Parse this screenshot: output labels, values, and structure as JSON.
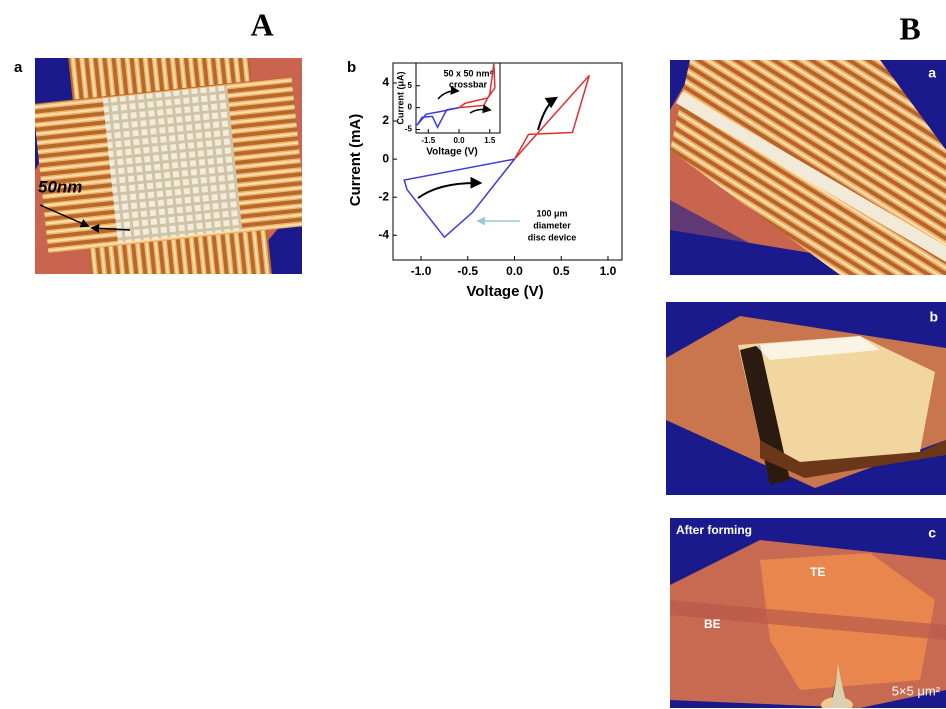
{
  "figure_labels": {
    "left": "A",
    "right": "B"
  },
  "panel_a": {
    "label": "a",
    "scale_label": "50nm"
  },
  "chart_data": [
    {
      "type": "line",
      "panel_label": "b",
      "x_label": "Voltage (V)",
      "y_label": "Current (mA)",
      "annotation": [
        "100 μm",
        "diameter",
        "disc device"
      ],
      "xlim": [
        -1.3,
        1.15
      ],
      "ylim": [
        -5.3,
        5.05
      ],
      "xticks": [
        {
          "value": -1.0,
          "label": "-1.0"
        },
        -0.5,
        {
          "value": 0.0,
          "label": "0.0"
        },
        0.5,
        {
          "value": 1.0,
          "label": "1.0"
        }
      ],
      "yticks": [
        4,
        2,
        0,
        -2,
        -4
      ],
      "series": [
        {
          "color": "#e03030",
          "x": [
            0.0,
            0.8,
            0.62,
            0.15,
            0.0
          ],
          "values": [
            0.0,
            4.4,
            1.4,
            1.3,
            0.0
          ]
        },
        {
          "color": "#3b3bdc",
          "x": [
            0.0,
            -1.18,
            -1.15,
            -0.75,
            -0.45,
            0.0
          ],
          "values": [
            0.0,
            -1.1,
            -1.6,
            -4.1,
            -2.8,
            0.0
          ]
        }
      ]
    },
    {
      "type": "line",
      "title": [
        "50 x 50 nm²",
        "crossbar"
      ],
      "x_label": "Voltage (V)",
      "y_label": "Current (μA)",
      "xlim": [
        -2.1,
        2.0
      ],
      "ylim": [
        -5.8,
        10.2
      ],
      "xticks": [
        -1.5,
        {
          "value": 0.0,
          "label": "0.0"
        },
        1.5
      ],
      "yticks": [
        5,
        0,
        -5
      ],
      "series": [
        {
          "color": "#e03030",
          "x": [
            0.0,
            1.2,
            1.5,
            1.7,
            1.75,
            1.4,
            0.3,
            0.0
          ],
          "values": [
            0.0,
            0.5,
            3.0,
            10.0,
            4.5,
            2.2,
            1.0,
            0.0
          ]
        },
        {
          "color": "#3b3bdc",
          "x": [
            0.0,
            -0.6,
            -1.05,
            -1.3,
            -1.8,
            -2.05,
            -1.6,
            -0.8,
            0.0
          ],
          "values": [
            0.0,
            -0.5,
            -4.5,
            -2.0,
            -2.2,
            -4.0,
            -1.5,
            -0.8,
            0.0
          ]
        }
      ]
    }
  ],
  "panel_b": [
    {
      "label": "a"
    },
    {
      "label": "b"
    },
    {
      "label": "c",
      "annotations": [
        "After forming",
        "TE",
        "BE",
        "5×5 μm²"
      ]
    }
  ]
}
